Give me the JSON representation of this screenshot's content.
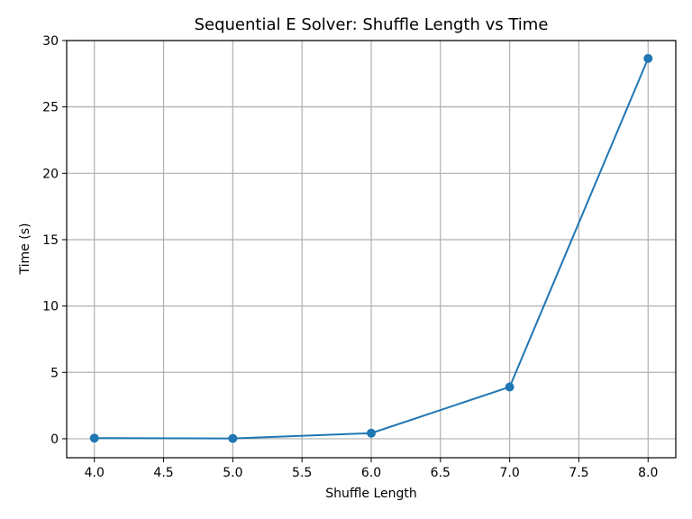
{
  "chart_data": {
    "type": "line",
    "title": "Sequential E Solver: Shuffle Length vs Time",
    "xlabel": "Shuffle Length",
    "ylabel": "Time (s)",
    "xlim": [
      3.8,
      8.2
    ],
    "ylim": [
      -1.43,
      30
    ],
    "grid": true,
    "x_ticks": [
      4.0,
      4.5,
      5.0,
      5.5,
      6.0,
      6.5,
      7.0,
      7.5,
      8.0
    ],
    "x_tick_labels": [
      "4.0",
      "4.5",
      "5.0",
      "5.5",
      "6.0",
      "6.5",
      "7.0",
      "7.5",
      "8.0"
    ],
    "y_ticks": [
      0,
      5,
      10,
      15,
      20,
      25,
      30
    ],
    "y_tick_labels": [
      "0",
      "5",
      "10",
      "15",
      "20",
      "25",
      "30"
    ],
    "series": [
      {
        "name": "Time",
        "color": "#1f77b4",
        "marker": "circle",
        "x": [
          4,
          5,
          6,
          7,
          8
        ],
        "y": [
          0.05,
          0.02,
          0.42,
          3.9,
          28.65
        ]
      }
    ]
  }
}
